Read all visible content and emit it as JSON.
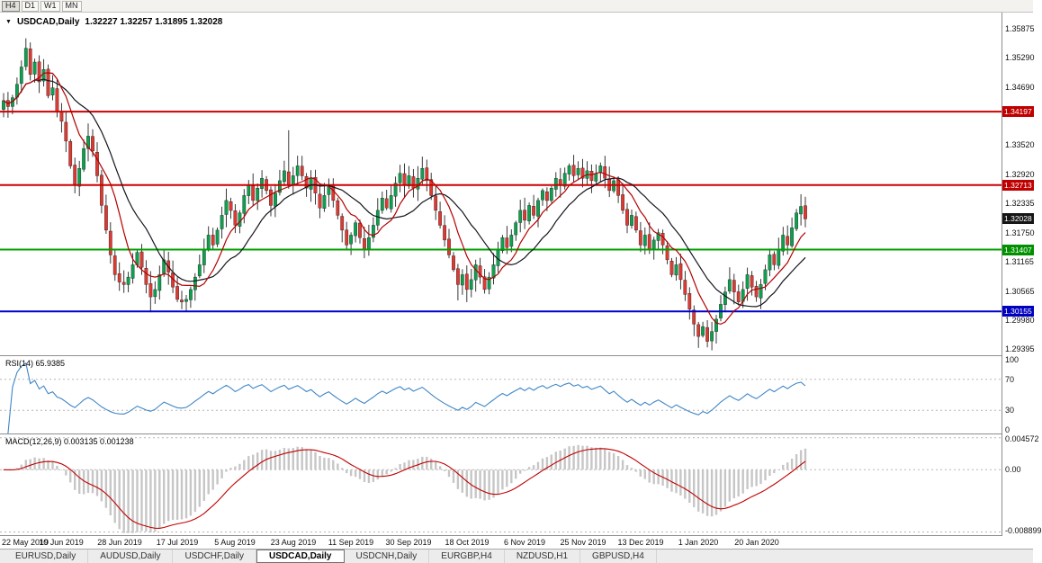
{
  "window": {
    "symbol": "USDCAD",
    "timeframe": "Daily"
  },
  "toolbar": {
    "timeframes": [
      {
        "label": "H4",
        "active": true
      },
      {
        "label": "D1",
        "active": false
      },
      {
        "label": "W1",
        "active": false
      },
      {
        "label": "MN",
        "active": false
      }
    ]
  },
  "chart": {
    "title": "USDCAD,Daily",
    "quote_line": "1.32227 1.32257 1.31895 1.32028"
  },
  "indicators_text": {
    "rsi": "RSI(14) 65.9385",
    "macd": "MACD(12,26,9) 0.003135 0.001238"
  },
  "tabs": [
    {
      "label": "EURUSD,Daily",
      "active": false
    },
    {
      "label": "AUDUSD,Daily",
      "active": false
    },
    {
      "label": "USDCHF,Daily",
      "active": false
    },
    {
      "label": "USDCAD,Daily",
      "active": true
    },
    {
      "label": "USDCNH,Daily",
      "active": false
    },
    {
      "label": "EURGBP,H4",
      "active": false
    },
    {
      "label": "NZDUSD,H1",
      "active": false
    },
    {
      "label": "GBPUSD,H4",
      "active": false
    }
  ],
  "chart_data": {
    "type": "candlestick",
    "symbol": "USDCAD",
    "timeframe": "Daily",
    "current_bar": {
      "open": 1.32227,
      "high": 1.32257,
      "low": 1.31895,
      "close": 1.32028
    },
    "x_labels": [
      "22 May 2019",
      "10 Jun 2019",
      "28 Jun 2019",
      "17 Jul 2019",
      "5 Aug 2019",
      "23 Aug 2019",
      "11 Sep 2019",
      "30 Sep 2019",
      "18 Oct 2019",
      "6 Nov 2019",
      "25 Nov 2019",
      "13 Dec 2019",
      "1 Jan 2020",
      "20 Jan 2020"
    ],
    "x_label_step": 13,
    "price_range": [
      1.2927,
      1.362
    ],
    "y_axis_labels": [
      "1.35875",
      "1.35290",
      "1.34690",
      "1.33520",
      "1.32920",
      "1.32335",
      "1.31750",
      "1.31165",
      "1.30565",
      "1.29980",
      "1.29395"
    ],
    "price_tags": [
      {
        "price": "1.34197",
        "value": 1.34197,
        "color": "#c00000",
        "name": "resistance-1"
      },
      {
        "price": "1.32713",
        "value": 1.32713,
        "color": "#c00000",
        "name": "resistance-2"
      },
      {
        "price": "1.32028",
        "value": 1.32028,
        "color": "#151515",
        "name": "current-price"
      },
      {
        "price": "1.31407",
        "value": 1.31407,
        "color": "#009000",
        "name": "support-1"
      },
      {
        "price": "1.30155",
        "value": 1.30155,
        "color": "#0000c0",
        "name": "support-2"
      }
    ],
    "hlines": [
      {
        "price": 1.34197,
        "color": "#cc0000",
        "width": 2
      },
      {
        "price": 1.32713,
        "color": "#cc0000",
        "width": 2
      },
      {
        "price": 1.31407,
        "color": "#00a000",
        "width": 2
      },
      {
        "price": 1.30155,
        "color": "#0000cc",
        "width": 2
      }
    ],
    "closes": [
      1.3442,
      1.343,
      1.3448,
      1.3475,
      1.351,
      1.3548,
      1.3495,
      1.352,
      1.348,
      1.3505,
      1.3452,
      1.3468,
      1.342,
      1.34,
      1.336,
      1.331,
      1.327,
      1.3305,
      1.3345,
      1.337,
      1.334,
      1.329,
      1.323,
      1.318,
      1.313,
      1.309,
      1.3075,
      1.307,
      1.3085,
      1.311,
      1.3135,
      1.3105,
      1.307,
      1.3045,
      1.306,
      1.309,
      1.312,
      1.3095,
      1.3065,
      1.304,
      1.3035,
      1.304,
      1.306,
      1.3085,
      1.311,
      1.314,
      1.317,
      1.315,
      1.318,
      1.321,
      1.324,
      1.322,
      1.319,
      1.3215,
      1.325,
      1.327,
      1.324,
      1.3265,
      1.3285,
      1.326,
      1.323,
      1.3255,
      1.328,
      1.33,
      1.327,
      1.329,
      1.331,
      1.329,
      1.3265,
      1.3285,
      1.3255,
      1.3225,
      1.325,
      1.327,
      1.324,
      1.321,
      1.318,
      1.315,
      1.317,
      1.3195,
      1.3165,
      1.314,
      1.3165,
      1.319,
      1.322,
      1.3245,
      1.3225,
      1.325,
      1.3275,
      1.3295,
      1.327,
      1.329,
      1.3265,
      1.3285,
      1.3305,
      1.328,
      1.325,
      1.322,
      1.319,
      1.316,
      1.313,
      1.31,
      1.307,
      1.309,
      1.306,
      1.308,
      1.311,
      1.3085,
      1.306,
      1.3085,
      1.311,
      1.314,
      1.3165,
      1.3145,
      1.317,
      1.3195,
      1.322,
      1.32,
      1.323,
      1.321,
      1.324,
      1.326,
      1.324,
      1.3265,
      1.3285,
      1.327,
      1.3295,
      1.331,
      1.329,
      1.3305,
      1.3285,
      1.33,
      1.328,
      1.3295,
      1.331,
      1.3285,
      1.326,
      1.328,
      1.325,
      1.322,
      1.319,
      1.321,
      1.318,
      1.315,
      1.317,
      1.314,
      1.316,
      1.3175,
      1.315,
      1.312,
      1.309,
      1.311,
      1.308,
      1.305,
      1.302,
      1.299,
      1.2965,
      1.2985,
      1.2955,
      1.2975,
      1.3,
      1.303,
      1.3055,
      1.308,
      1.3055,
      1.3035,
      1.306,
      1.309,
      1.3065,
      1.3045,
      1.307,
      1.31,
      1.313,
      1.311,
      1.314,
      1.317,
      1.315,
      1.3185,
      1.3215,
      1.3228,
      1.32028
    ],
    "wick_spikes": [
      {
        "i": 5,
        "high": 1.3568
      },
      {
        "i": 19,
        "high": 1.3396
      },
      {
        "i": 33,
        "low": 1.3014
      },
      {
        "i": 64,
        "high": 1.3382
      },
      {
        "i": 102,
        "low": 1.3038
      },
      {
        "i": 158,
        "low": 1.2943
      }
    ],
    "colors": {
      "up": "#0da14e",
      "down": "#dd3a32",
      "wick": "#222222",
      "ma_fast": "#b40000",
      "ma_slow": "#14141e",
      "rsi_line": "#3f86c8",
      "macd_hist": "#c6c6c6",
      "macd_signal": "#c00000"
    },
    "moving_averages": [
      {
        "type": "sma",
        "period": 8
      },
      {
        "type": "sma",
        "period": 16
      }
    ],
    "rsi": {
      "period": 14,
      "value": 65.9385,
      "range": [
        0,
        100
      ],
      "scale_labels": [
        "100",
        "70",
        "30",
        "0"
      ],
      "dashed_levels": [
        70,
        30
      ]
    },
    "macd": {
      "fast": 12,
      "slow": 26,
      "signal": 9,
      "value": 0.003135,
      "signal_value": 0.001238,
      "range": [
        -0.00935,
        0.00505
      ],
      "scale_labels": [
        {
          "label": "0.004572",
          "value": 0.004572
        },
        {
          "label": "0.00",
          "value": 0
        },
        {
          "label": "-0.008899",
          "value": -0.008899
        }
      ]
    }
  }
}
